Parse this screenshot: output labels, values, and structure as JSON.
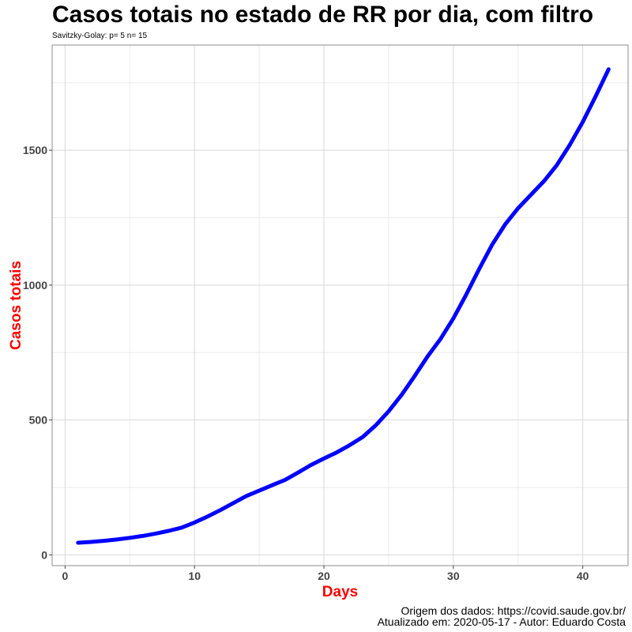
{
  "chart_data": {
    "type": "line",
    "title": "Casos totais no estado de RR por dia, com filtro",
    "subtitle": "Savitzky-Golay: p= 5 n= 15",
    "xlabel": "Days",
    "ylabel": "Casos totais",
    "xlim": [
      -1,
      43.5
    ],
    "ylim": [
      -40,
      1890
    ],
    "x_ticks": [
      0,
      10,
      20,
      30,
      40
    ],
    "y_ticks": [
      0,
      500,
      1000,
      1500
    ],
    "grid": true,
    "legend": "none",
    "line_color": "#0000FF",
    "label_color": "#FF0000",
    "series": [
      {
        "x": [
          1,
          2,
          3,
          4,
          5,
          6,
          7,
          8,
          9,
          10,
          11,
          12,
          13,
          14,
          15,
          16,
          17,
          18,
          19,
          20,
          21,
          22,
          23,
          24,
          25,
          26,
          27,
          28,
          29,
          30,
          31,
          32,
          33,
          34,
          35,
          36,
          37,
          38,
          39,
          40,
          41,
          42
        ],
        "y": [
          45,
          48,
          52,
          57,
          63,
          70,
          79,
          89,
          101,
          120,
          142,
          166,
          192,
          218,
          238,
          258,
          278,
          305,
          333,
          357,
          380,
          407,
          437,
          480,
          532,
          593,
          662,
          735,
          800,
          876,
          965,
          1060,
          1150,
          1225,
          1285,
          1335,
          1385,
          1445,
          1520,
          1605,
          1700,
          1800
        ]
      }
    ]
  },
  "footer": {
    "line1": "Origem dos dados: https://covid.saude.gov.br/",
    "line2": "Atualizado em: 2020-05-17    -  Autor: Eduardo Costa"
  }
}
